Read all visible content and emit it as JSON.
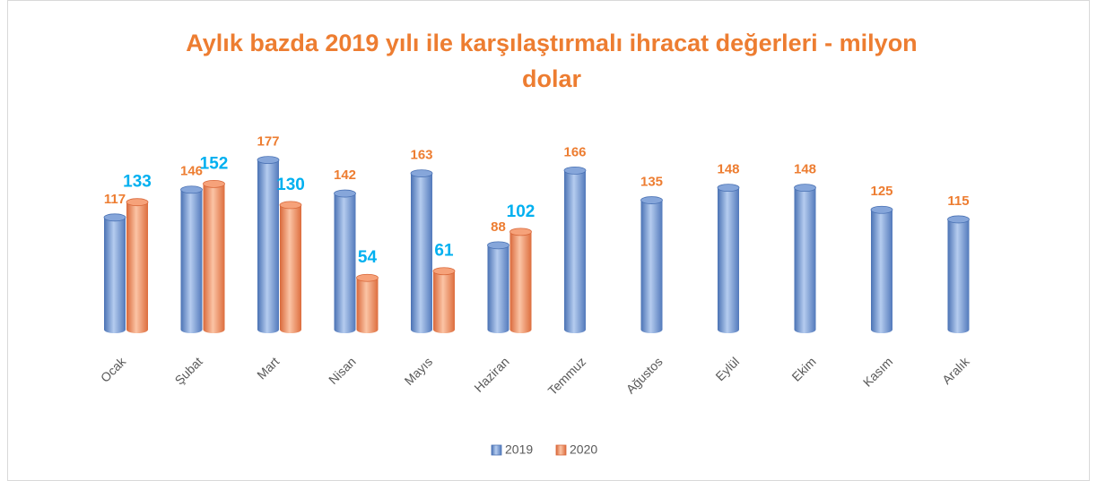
{
  "chart_data": {
    "type": "bar",
    "title": [
      "Aylık bazda 2019 yılı ile karşılaştırmalı ihracat değerleri - milyon",
      "dolar"
    ],
    "categories": [
      "Ocak",
      "Şubat",
      "Mart",
      "Nisan",
      "Mayıs",
      "Haziran",
      "Temmuz",
      "Ağustos",
      "Eylül",
      "Ekim",
      "Kasım",
      "Aralık"
    ],
    "series": [
      {
        "name": "2019",
        "color": "#6f95cf",
        "label_color": "#ED7D31",
        "values": [
          117,
          146,
          177,
          142,
          163,
          88,
          166,
          135,
          148,
          148,
          125,
          115
        ]
      },
      {
        "name": "2020",
        "color": "#f0956a",
        "label_color": "#00B0F0",
        "values": [
          133,
          152,
          130,
          54,
          61,
          102,
          null,
          null,
          null,
          null,
          null,
          null
        ]
      }
    ],
    "legend": "bottom"
  }
}
